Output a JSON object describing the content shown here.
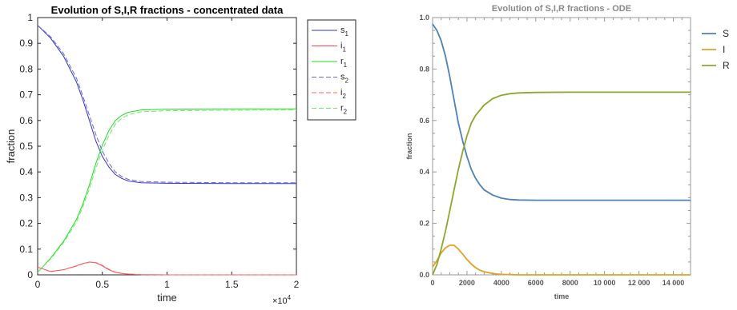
{
  "chart_data": [
    {
      "type": "line",
      "title": "Evolution of S,I,R fractions - concentrated data",
      "xlabel": "time",
      "ylabel": "fraction",
      "x_exponent_label": "×10",
      "x_exponent_power": "4",
      "xlim": [
        0,
        2
      ],
      "ylim": [
        0,
        1
      ],
      "xticks": [
        "0",
        "0.5",
        "1",
        "1.5",
        "2"
      ],
      "yticks": [
        "0",
        "0.1",
        "0.2",
        "0.3",
        "0.4",
        "0.5",
        "0.6",
        "0.7",
        "0.8",
        "0.9",
        "1"
      ],
      "grid": false,
      "legend_position": "top-right",
      "x": [
        0,
        0.1,
        0.2,
        0.3,
        0.35,
        0.4,
        0.45,
        0.5,
        0.55,
        0.6,
        0.65,
        0.7,
        0.8,
        1.0,
        1.5,
        2.0
      ],
      "series": [
        {
          "name": "s",
          "sub": "1",
          "color": "#3333cc",
          "dash": "solid",
          "values": [
            0.97,
            0.92,
            0.85,
            0.75,
            0.68,
            0.6,
            0.52,
            0.46,
            0.42,
            0.39,
            0.375,
            0.365,
            0.358,
            0.356,
            0.355,
            0.355
          ]
        },
        {
          "name": "i",
          "sub": "1",
          "color": "#ff4444",
          "dash": "solid",
          "values": [
            0.03,
            0.013,
            0.02,
            0.035,
            0.044,
            0.05,
            0.047,
            0.035,
            0.02,
            0.01,
            0.005,
            0.003,
            0.001,
            0,
            0,
            0
          ]
        },
        {
          "name": "r",
          "sub": "1",
          "color": "#22dd22",
          "dash": "solid",
          "values": [
            0.01,
            0.065,
            0.13,
            0.215,
            0.276,
            0.35,
            0.433,
            0.505,
            0.56,
            0.6,
            0.62,
            0.632,
            0.641,
            0.644,
            0.645,
            0.645
          ]
        },
        {
          "name": "s",
          "sub": "2",
          "color": "#6666dd",
          "dash": "dashed",
          "values": [
            0.97,
            0.925,
            0.86,
            0.765,
            0.695,
            0.62,
            0.545,
            0.48,
            0.435,
            0.4,
            0.382,
            0.371,
            0.363,
            0.36,
            0.358,
            0.358
          ]
        },
        {
          "name": "i",
          "sub": "2",
          "color": "#ff6666",
          "dash": "dashed",
          "values": [
            0.03,
            0.012,
            0.02,
            0.034,
            0.043,
            0.049,
            0.048,
            0.037,
            0.022,
            0.011,
            0.006,
            0.003,
            0.001,
            0,
            0,
            0
          ]
        },
        {
          "name": "r",
          "sub": "2",
          "color": "#66ee66",
          "dash": "dashed",
          "values": [
            0.01,
            0.062,
            0.125,
            0.205,
            0.265,
            0.335,
            0.415,
            0.485,
            0.54,
            0.585,
            0.608,
            0.622,
            0.634,
            0.638,
            0.64,
            0.641
          ]
        }
      ]
    },
    {
      "type": "line",
      "title": "Evolution of S,I,R fractions -  ODE",
      "xlabel": "time",
      "ylabel": "fraction",
      "xlim": [
        0,
        15000
      ],
      "ylim": [
        0,
        1
      ],
      "xticks": [
        "0",
        "2000",
        "4000",
        "6000",
        "8000",
        "10 000",
        "12 000",
        "14 000"
      ],
      "yticks": [
        "0.0",
        "0.2",
        "0.4",
        "0.6",
        "0.8",
        "1.0"
      ],
      "grid": false,
      "legend_position": "right",
      "x": [
        0,
        250,
        500,
        750,
        1000,
        1250,
        1500,
        1750,
        2000,
        2250,
        2500,
        2750,
        3000,
        3500,
        4000,
        4500,
        5000,
        6000,
        8000,
        10000,
        12000,
        15000
      ],
      "series": [
        {
          "name": "S",
          "color": "#4e81b8",
          "values": [
            0.975,
            0.95,
            0.91,
            0.85,
            0.77,
            0.68,
            0.59,
            0.52,
            0.46,
            0.41,
            0.375,
            0.35,
            0.33,
            0.31,
            0.298,
            0.293,
            0.291,
            0.29,
            0.29,
            0.29,
            0.29,
            0.29
          ]
        },
        {
          "name": "I",
          "color": "#e0a226",
          "values": [
            0.03,
            0.055,
            0.085,
            0.105,
            0.115,
            0.115,
            0.1,
            0.08,
            0.06,
            0.042,
            0.028,
            0.018,
            0.012,
            0.005,
            0.002,
            0.001,
            0,
            0,
            0,
            0,
            0,
            0
          ]
        },
        {
          "name": "R",
          "color": "#8ba82c",
          "values": [
            0,
            0.04,
            0.1,
            0.17,
            0.25,
            0.33,
            0.41,
            0.48,
            0.54,
            0.59,
            0.62,
            0.64,
            0.66,
            0.685,
            0.698,
            0.704,
            0.707,
            0.709,
            0.71,
            0.71,
            0.71,
            0.71
          ]
        }
      ]
    }
  ]
}
